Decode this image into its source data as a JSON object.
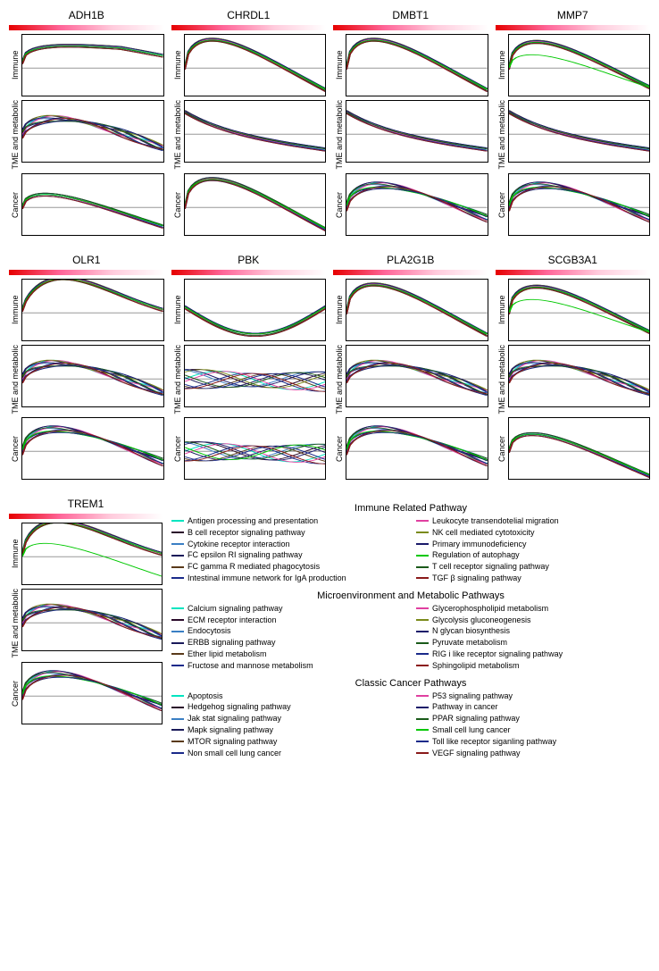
{
  "genes_row1": [
    "ADH1B",
    "CHRDL1",
    "DMBT1",
    "MMP7"
  ],
  "genes_row2": [
    "OLR1",
    "PBK",
    "PLA2G1B",
    "SCGB3A1"
  ],
  "gene_trem": "TREM1",
  "row_labels": [
    "Immune",
    "TME and metabolic",
    "Cancer"
  ],
  "plot_style": {
    "width": 160,
    "height": 70,
    "ylim": [
      -0.5,
      0.6
    ],
    "background": "#ffffff",
    "border_color": "#000000",
    "zero_line_color": "#333333",
    "gradient_colors": [
      "#e60000",
      "#ff6699",
      "#ffccdd",
      "#ffffff"
    ]
  },
  "curve_colors": {
    "immune": [
      "#00e5c0",
      "#2a0a2a",
      "#3a7fc4",
      "#1a1a5a",
      "#5a3a1a",
      "#1a2a8a",
      "#e040a0",
      "#7a8a1a",
      "#1a1a6a",
      "#00c800",
      "#1a5a1a",
      "#8a1a1a"
    ],
    "tme": [
      "#00e5c0",
      "#2a0a2a",
      "#3a7fc4",
      "#1a1a5a",
      "#5a3a1a",
      "#1a2a8a",
      "#e040a0",
      "#7a8a1a",
      "#1a1a6a",
      "#1a5a1a",
      "#1a2a8a",
      "#8a1a1a"
    ],
    "cancer": [
      "#00e5c0",
      "#2a0a2a",
      "#3a7fc4",
      "#1a1a5a",
      "#5a3a1a",
      "#1a2a8a",
      "#e040a0",
      "#1a1a6a",
      "#1a5a1a",
      "#00c800",
      "#1a2a8a",
      "#8a1a1a"
    ]
  },
  "curve_shapes": {
    "ADH1B": {
      "immune": "rise",
      "tme": "mixed",
      "cancer": "mixed_down"
    },
    "CHRDL1": {
      "immune": "arch_fall",
      "tme": "fall",
      "cancer": "arch_fall"
    },
    "DMBT1": {
      "immune": "arch_fall",
      "tme": "fall",
      "cancer": "arch_mixed"
    },
    "MMP7": {
      "immune": "arch_fall_green",
      "tme": "fall",
      "cancer": "arch_mixed"
    },
    "OLR1": {
      "immune": "rise_arch",
      "tme": "mixed",
      "cancer": "arch_mixed"
    },
    "PBK": {
      "immune": "fall_rise",
      "tme": "mixed_flat",
      "cancer": "mixed_flat"
    },
    "PLA2G1B": {
      "immune": "arch_fall",
      "tme": "mixed",
      "cancer": "arch_mixed"
    },
    "SCGB3A1": {
      "immune": "arch_fall_green",
      "tme": "mixed",
      "cancer": "arch_down"
    },
    "TREM1": {
      "immune": "rise_arch_green",
      "tme": "mixed",
      "cancer": "arch_mixed"
    }
  },
  "legend": {
    "immune": {
      "title": "Immune Related Pathway",
      "left": [
        {
          "c": "#00e5c0",
          "t": "Antigen processing and presentation"
        },
        {
          "c": "#2a0a2a",
          "t": "B cell receptor signaling pathway"
        },
        {
          "c": "#3a7fc4",
          "t": "Cytokine receptor interaction"
        },
        {
          "c": "#1a1a5a",
          "t": "FC epsilon RI signaling pathway"
        },
        {
          "c": "#5a3a1a",
          "t": "FC gamma R mediated phagocytosis"
        },
        {
          "c": "#1a2a8a",
          "t": "Intestinal immune network for IgA production"
        }
      ],
      "right": [
        {
          "c": "#e040a0",
          "t": "Leukocyte transendotelial migration"
        },
        {
          "c": "#7a8a1a",
          "t": "NK cell mediated cytotoxicity"
        },
        {
          "c": "#1a1a6a",
          "t": "Primary immunodeficiency"
        },
        {
          "c": "#00c800",
          "t": "Regulation of autophagy"
        },
        {
          "c": "#1a5a1a",
          "t": "T cell receptor signaling pathway"
        },
        {
          "c": "#8a1a1a",
          "t": "TGF β signaling pathway"
        }
      ]
    },
    "tme": {
      "title": "Microenvironment and Metabolic Pathways",
      "left": [
        {
          "c": "#00e5c0",
          "t": "Calcium signaling pathway"
        },
        {
          "c": "#2a0a2a",
          "t": "ECM receptor interaction"
        },
        {
          "c": "#3a7fc4",
          "t": "Endocytosis"
        },
        {
          "c": "#1a1a5a",
          "t": "ERBB signaling pathway"
        },
        {
          "c": "#5a3a1a",
          "t": "Ether lipid metabolism"
        },
        {
          "c": "#1a2a8a",
          "t": "Fructose and mannose metabolism"
        }
      ],
      "right": [
        {
          "c": "#e040a0",
          "t": "Glycerophospholipid metabolism"
        },
        {
          "c": "#7a8a1a",
          "t": "Glycolysis gluconeogenesis"
        },
        {
          "c": "#1a1a6a",
          "t": "N glycan biosynthesis"
        },
        {
          "c": "#1a5a1a",
          "t": "Pyruvate metabolism"
        },
        {
          "c": "#1a2a8a",
          "t": "RIG i like receptor signaling pathway"
        },
        {
          "c": "#8a1a1a",
          "t": "Sphingolipid metabolism"
        }
      ]
    },
    "cancer": {
      "title": "Classic Cancer Pathways",
      "left": [
        {
          "c": "#00e5c0",
          "t": "Apoptosis"
        },
        {
          "c": "#2a0a2a",
          "t": "Hedgehog signaling pathway"
        },
        {
          "c": "#3a7fc4",
          "t": "Jak stat signaling pathway"
        },
        {
          "c": "#1a1a5a",
          "t": "Mapk signaling pathway"
        },
        {
          "c": "#5a3a1a",
          "t": "MTOR signaling pathway"
        },
        {
          "c": "#1a2a8a",
          "t": "Non small cell lung cancer"
        }
      ],
      "right": [
        {
          "c": "#e040a0",
          "t": "P53 signaling pathway"
        },
        {
          "c": "#1a1a6a",
          "t": "Pathway in cancer"
        },
        {
          "c": "#1a5a1a",
          "t": "PPAR signaling pathway"
        },
        {
          "c": "#00c800",
          "t": "Small cell lung cancer"
        },
        {
          "c": "#1a2a8a",
          "t": "Toll like receptor siganling pathway"
        },
        {
          "c": "#8a1a1a",
          "t": "VEGF signaling pathway"
        }
      ]
    }
  }
}
